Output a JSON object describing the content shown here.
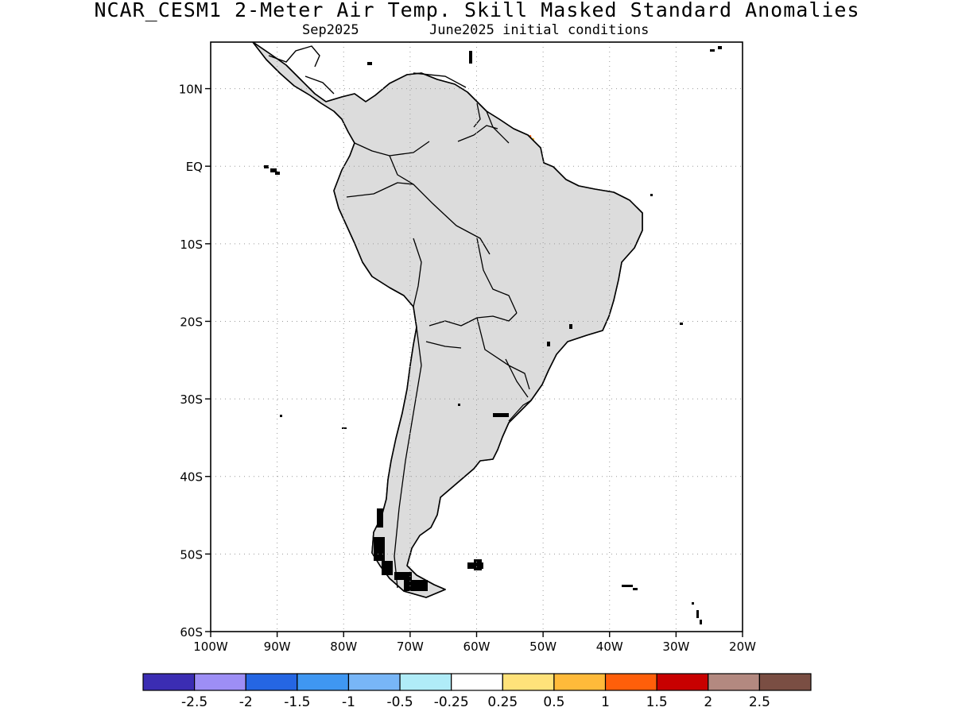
{
  "header": {
    "title": "NCAR_CESM1 2-Meter Air Temp. Skill Masked Standard Anomalies",
    "subtitle_left": "Sep2025",
    "subtitle_right": "June2025 initial conditions"
  },
  "map": {
    "lon_range": [
      -100,
      -20
    ],
    "lat_range": [
      -60,
      16
    ],
    "lat_ticks": [
      {
        "value": 10,
        "label": "10N"
      },
      {
        "value": 0,
        "label": "EQ"
      },
      {
        "value": -10,
        "label": "10S"
      },
      {
        "value": -20,
        "label": "20S"
      },
      {
        "value": -30,
        "label": "30S"
      },
      {
        "value": -40,
        "label": "40S"
      },
      {
        "value": -50,
        "label": "50S"
      },
      {
        "value": -60,
        "label": "60S"
      }
    ],
    "lon_ticks": [
      {
        "value": -100,
        "label": "100W"
      },
      {
        "value": -90,
        "label": "90W"
      },
      {
        "value": -80,
        "label": "80W"
      },
      {
        "value": -70,
        "label": "70W"
      },
      {
        "value": -60,
        "label": "60W"
      },
      {
        "value": -50,
        "label": "50W"
      },
      {
        "value": -40,
        "label": "40W"
      },
      {
        "value": -30,
        "label": "30W"
      },
      {
        "value": -20,
        "label": "20W"
      }
    ],
    "grid": true,
    "colors": {
      "land_masked": "#dcdcdc",
      "coast": "#000000",
      "grid": "#9a9a9a"
    }
  },
  "colorbar": {
    "colors": [
      "#3b2db3",
      "#9d8ef5",
      "#2566e3",
      "#3f97f2",
      "#78b6f7",
      "#b0ecf8",
      "#ffffff",
      "#ffe27a",
      "#ffba3a",
      "#ff5f0a",
      "#c80000",
      "#b38980",
      "#7a4e43"
    ],
    "labels": [
      "-2.5",
      "-2",
      "-1.5",
      "-1",
      "-0.5",
      "-0.25",
      "0.25",
      "0.5",
      "1",
      "1.5",
      "2",
      "2.5"
    ]
  }
}
